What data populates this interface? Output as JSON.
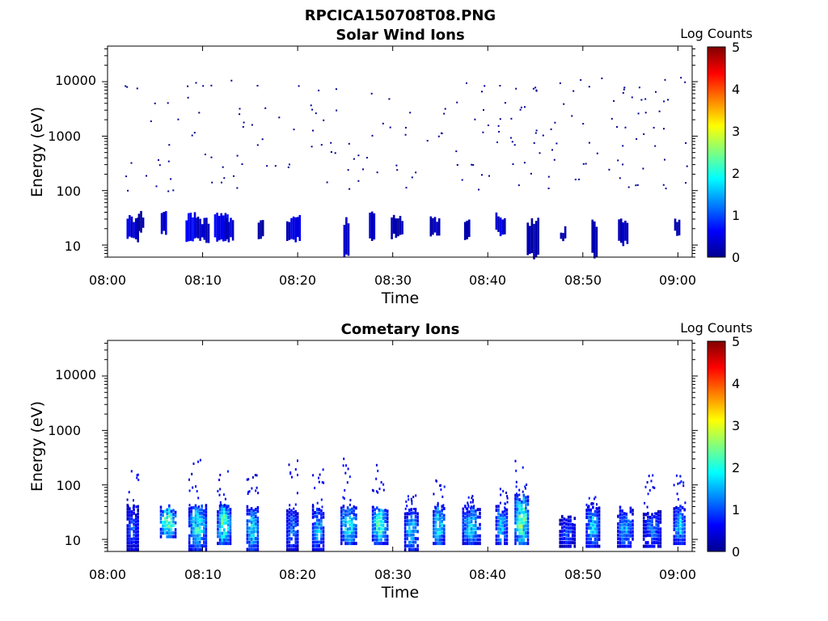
{
  "figure_title": "RPCICA150708T08.PNG",
  "colorbar": {
    "label": "Log Counts",
    "ticks": [
      "0",
      "1",
      "2",
      "3",
      "4",
      "5"
    ],
    "range": [
      0,
      5
    ],
    "colormap": "jet"
  },
  "chart_data": [
    {
      "type": "heatmap",
      "title": "Solar Wind Ions",
      "xlabel": "Time",
      "ylabel": "Energy (eV)",
      "x_ticks": [
        "08:00",
        "08:10",
        "08:20",
        "08:30",
        "08:40",
        "08:50",
        "09:00"
      ],
      "x_range_minutes": [
        0,
        61.5
      ],
      "y_ticks": [
        "10",
        "100",
        "1000",
        "10000"
      ],
      "y_scale": "log",
      "y_range": [
        6,
        45000
      ],
      "low_energy_events": [
        [
          2.0,
          12,
          32,
          0.4
        ],
        [
          3.2,
          18,
          40,
          0.2
        ],
        [
          5.6,
          16,
          35,
          0.5
        ],
        [
          8.2,
          12,
          35,
          0.5
        ],
        [
          9.2,
          12,
          28,
          0.3
        ],
        [
          11.2,
          12,
          35,
          0.5
        ],
        [
          12.2,
          12,
          30,
          0.4
        ],
        [
          15.8,
          14,
          30,
          0.2
        ],
        [
          18.8,
          12,
          30,
          0.4
        ],
        [
          24.8,
          6,
          28,
          0.3
        ],
        [
          27.5,
          12,
          35,
          0.4
        ],
        [
          29.8,
          14,
          30,
          0.2
        ],
        [
          33.9,
          15,
          32,
          0.3
        ],
        [
          37.5,
          12,
          28,
          0.2
        ],
        [
          40.8,
          16,
          35,
          0.4
        ],
        [
          44.1,
          6,
          28,
          0.2
        ],
        [
          47.6,
          12,
          20,
          0.2
        ],
        [
          50.9,
          6,
          25,
          0.2
        ],
        [
          53.7,
          10,
          30,
          0.3
        ],
        [
          59.6,
          16,
          30,
          0.2
        ]
      ],
      "high_energy_scatter": "sparse single-count pixels (log count ~0) between ~100 eV and ~15000 eV throughout 08:02-09:01"
    },
    {
      "type": "heatmap",
      "title": "Cometary Ions",
      "xlabel": "Time",
      "ylabel": "Energy (eV)",
      "x_ticks": [
        "08:00",
        "08:10",
        "08:20",
        "08:30",
        "08:40",
        "08:50",
        "09:00"
      ],
      "x_range_minutes": [
        0,
        61.5
      ],
      "y_ticks": [
        "10",
        "100",
        "1000",
        "10000"
      ],
      "y_scale": "log",
      "y_range": [
        6,
        45000
      ],
      "events": [
        [
          2.0,
          7,
          40,
          1.0,
          220
        ],
        [
          5.5,
          12,
          40,
          2.3,
          0
        ],
        [
          8.5,
          7,
          40,
          1.9,
          300
        ],
        [
          11.5,
          9,
          40,
          2.2,
          200
        ],
        [
          14.6,
          7,
          38,
          1.7,
          160
        ],
        [
          18.8,
          7,
          32,
          1.2,
          300
        ],
        [
          21.5,
          7,
          38,
          1.5,
          260
        ],
        [
          24.5,
          9,
          38,
          1.9,
          320
        ],
        [
          27.8,
          9,
          38,
          2.0,
          260
        ],
        [
          31.2,
          7,
          36,
          1.5,
          70
        ],
        [
          34.2,
          9,
          40,
          1.9,
          130
        ],
        [
          37.3,
          9,
          38,
          1.7,
          70
        ],
        [
          40.8,
          9,
          38,
          1.6,
          90
        ],
        [
          42.8,
          9,
          60,
          2.3,
          400
        ],
        [
          47.5,
          8,
          25,
          0.9,
          0
        ],
        [
          50.3,
          8,
          38,
          1.6,
          70
        ],
        [
          53.6,
          8,
          36,
          1.4,
          0
        ],
        [
          56.3,
          8,
          30,
          1.1,
          200
        ],
        [
          59.5,
          9,
          38,
          1.6,
          200
        ]
      ]
    }
  ]
}
